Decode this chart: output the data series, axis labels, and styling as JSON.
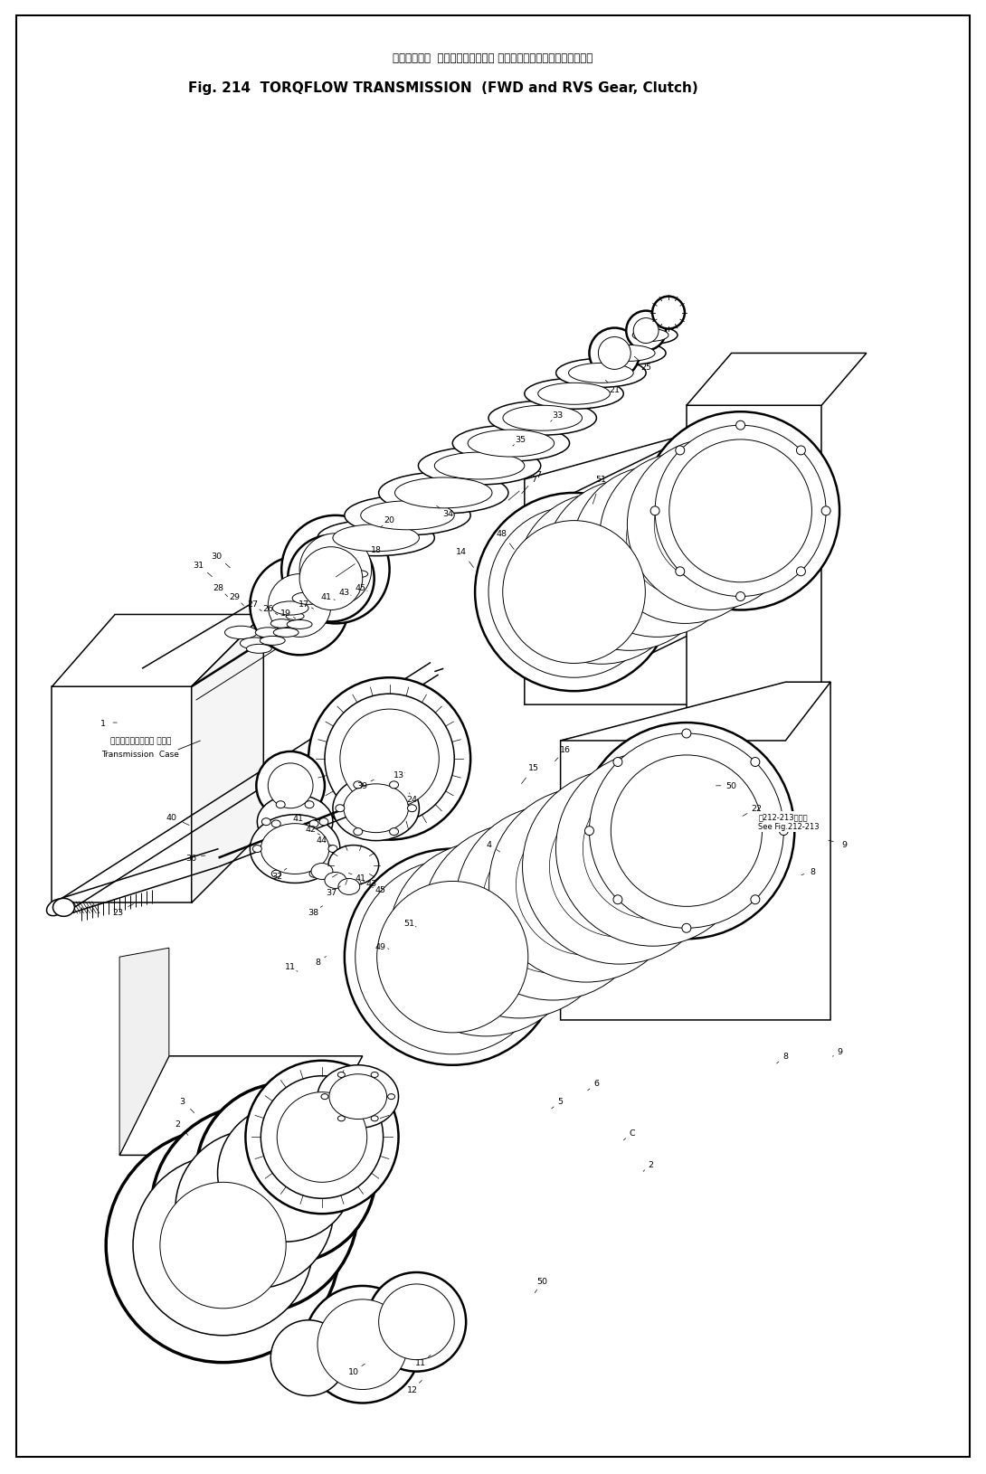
{
  "title_japanese": "トルクフロー  トランスミッション （前進、後進ギヤー、クラッチ）",
  "title_english": "Fig. 214  TORQFLOW TRANSMISSION  (FWD and RVS Gear, Clutch)",
  "background_color": "#ffffff",
  "fig_width": 10.9,
  "fig_height": 16.31,
  "dpi": 100,
  "note_text_line1": "図212-213図参照",
  "note_text_line2": "See Fig.212-213",
  "transmission_case_label_jp": "トランスミッション ケース",
  "transmission_case_label_en": "Transmission  Case"
}
